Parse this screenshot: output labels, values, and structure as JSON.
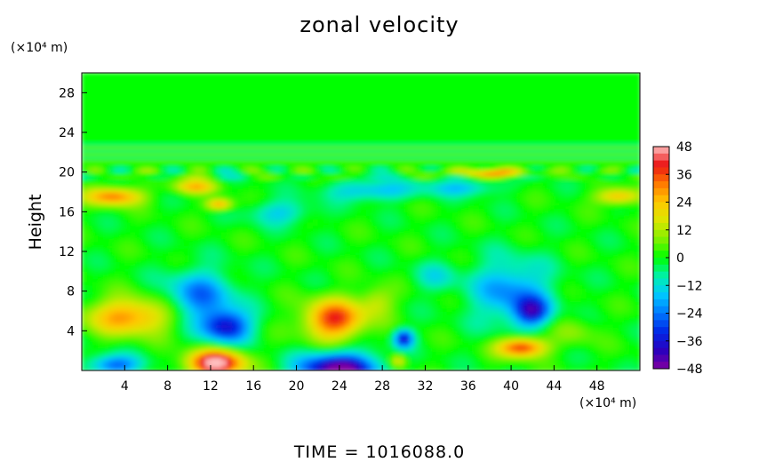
{
  "chart_data": {
    "type": "heatmap",
    "title": "zonal velocity",
    "ylabel": "Height",
    "xlabel": "",
    "x_unit": "(×10⁴ m)",
    "y_unit": "(×10⁴ m)",
    "xlim": [
      0,
      52
    ],
    "ylim": [
      0,
      30
    ],
    "x_ticks": [
      4,
      8,
      12,
      16,
      20,
      24,
      28,
      32,
      36,
      40,
      44,
      48
    ],
    "y_ticks": [
      4,
      8,
      12,
      16,
      20,
      24,
      28
    ],
    "colorbar": {
      "ticks": [
        48,
        36,
        24,
        12,
        0,
        -12,
        -24,
        -36,
        -48
      ],
      "min": -48,
      "max": 48
    },
    "features": [
      {
        "x": 4.5,
        "y": 5.5,
        "sx": 4.0,
        "sy": 1.8,
        "value": 30
      },
      {
        "x": 12.5,
        "y": 0.8,
        "sx": 2.6,
        "sy": 1.3,
        "value": 50
      },
      {
        "x": 11.0,
        "y": 7.5,
        "sx": 3.2,
        "sy": 2.6,
        "value": -24
      },
      {
        "x": 13.5,
        "y": 4.5,
        "sx": 2.2,
        "sy": 1.6,
        "value": -36
      },
      {
        "x": 23.5,
        "y": 5.2,
        "sx": 2.8,
        "sy": 2.0,
        "value": 38
      },
      {
        "x": 24.0,
        "y": 0.2,
        "sx": 3.6,
        "sy": 1.6,
        "value": -50
      },
      {
        "x": 40.0,
        "y": 8.0,
        "sx": 3.6,
        "sy": 3.2,
        "value": -22
      },
      {
        "x": 42.0,
        "y": 6.0,
        "sx": 1.6,
        "sy": 1.4,
        "value": -30
      },
      {
        "x": 41.0,
        "y": 2.4,
        "sx": 2.2,
        "sy": 1.0,
        "value": 40
      },
      {
        "x": 30.0,
        "y": 3.3,
        "sx": 0.9,
        "sy": 0.9,
        "value": -36
      },
      {
        "x": 29.5,
        "y": 1.0,
        "sx": 0.8,
        "sy": 0.7,
        "value": 20
      },
      {
        "x": 3.0,
        "y": 0.6,
        "sx": 2.5,
        "sy": 1.0,
        "value": -26
      },
      {
        "x": 3.0,
        "y": 17.6,
        "sx": 2.6,
        "sy": 0.9,
        "value": 32
      },
      {
        "x": 10.5,
        "y": 18.6,
        "sx": 2.0,
        "sy": 0.7,
        "value": 24
      },
      {
        "x": 12.8,
        "y": 16.8,
        "sx": 1.2,
        "sy": 0.6,
        "value": 28
      },
      {
        "x": 27.0,
        "y": 18.2,
        "sx": 4.0,
        "sy": 1.0,
        "value": -18
      },
      {
        "x": 18.5,
        "y": 16.0,
        "sx": 3.0,
        "sy": 1.2,
        "value": -14
      },
      {
        "x": 35.5,
        "y": 18.5,
        "sx": 3.5,
        "sy": 0.8,
        "value": -15
      },
      {
        "x": 38.5,
        "y": 20.0,
        "sx": 3.5,
        "sy": 0.4,
        "value": 30
      },
      {
        "x": 50.0,
        "y": 17.6,
        "sx": 2.0,
        "sy": 0.8,
        "value": 26
      },
      {
        "x": 33.0,
        "y": 9.5,
        "sx": 2.0,
        "sy": 1.5,
        "value": -10
      },
      {
        "x": 46.0,
        "y": 4.0,
        "sx": 2.0,
        "sy": 1.5,
        "value": 8
      },
      {
        "x": 27.5,
        "y": 7.0,
        "sx": 1.6,
        "sy": 1.5,
        "value": 14
      }
    ]
  },
  "footer": {
    "time_label": "TIME",
    "equals": "=",
    "time_value": "1016088.0"
  }
}
